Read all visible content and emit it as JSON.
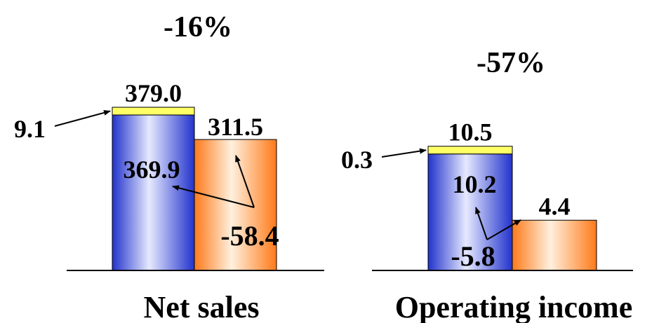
{
  "chart_data": [
    {
      "type": "bar",
      "title": "Net sales",
      "change_label": "-16%",
      "categories": [
        "",
        ""
      ],
      "series": [
        {
          "values": [
            369.9,
            null
          ]
        },
        {
          "values": [
            9.1,
            null
          ]
        },
        {
          "values": [
            null,
            311.5
          ]
        }
      ],
      "totals": [
        379.0,
        311.5
      ],
      "annotations": [
        {
          "text": "9.1",
          "value": 9.1
        },
        {
          "text": "379.0",
          "value": 379.0
        },
        {
          "text": "369.9",
          "value": 369.9
        },
        {
          "text": "311.5",
          "value": 311.5
        },
        {
          "text": "-58.4",
          "value": -58.4
        }
      ]
    },
    {
      "type": "bar",
      "title": "Operating income",
      "change_label": "-57%",
      "categories": [
        "",
        ""
      ],
      "series": [
        {
          "values": [
            10.2,
            null
          ]
        },
        {
          "values": [
            0.3,
            null
          ]
        },
        {
          "values": [
            null,
            4.4
          ]
        }
      ],
      "totals": [
        10.5,
        4.4
      ],
      "annotations": [
        {
          "text": "0.3",
          "value": 0.3
        },
        {
          "text": "10.5",
          "value": 10.5
        },
        {
          "text": "10.2",
          "value": 10.2
        },
        {
          "text": "4.4",
          "value": 4.4
        },
        {
          "text": "-5.8",
          "value": -5.8
        }
      ]
    }
  ],
  "colors": {
    "blue_edge": "#2233cc",
    "blue_light": "#e6e9ff",
    "orange_edge": "#ff7a1a",
    "orange_light": "#fff0de",
    "yellow": "#ffff66"
  }
}
